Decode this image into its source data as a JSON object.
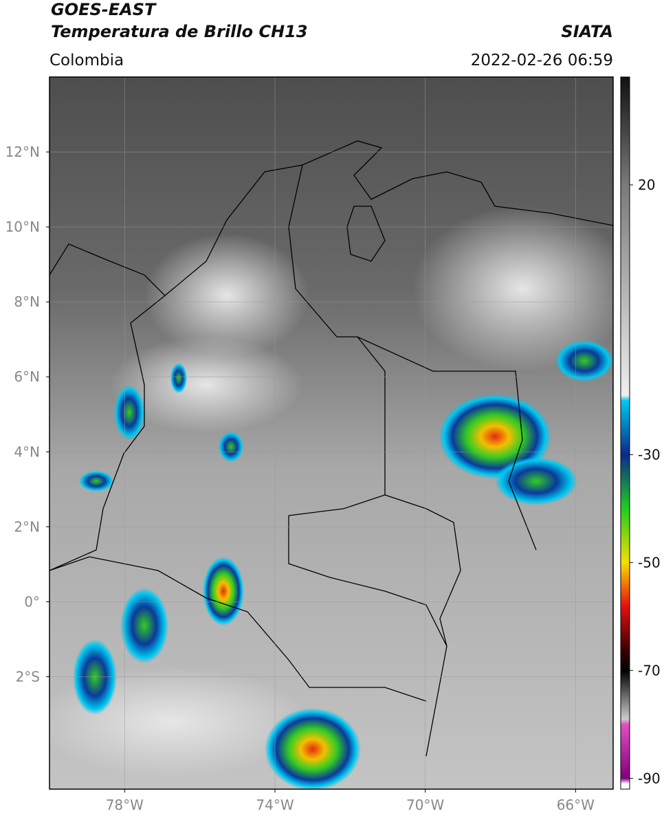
{
  "header": {
    "title": "GOES-EAST",
    "subtitle": "Temperatura de Brillo CH13",
    "source": "SIATA",
    "region": "Colombia",
    "datetime": "2022-02-26 06:59"
  },
  "map": {
    "xlim": [
      -80,
      -65
    ],
    "ylim": [
      -5,
      14
    ],
    "grid": true,
    "xticks": [
      {
        "value": -78,
        "label": "78°W"
      },
      {
        "value": -74,
        "label": "74°W"
      },
      {
        "value": -70,
        "label": "70°W"
      },
      {
        "value": -66,
        "label": "66°W"
      }
    ],
    "yticks": [
      {
        "value": 12,
        "label": "12°N"
      },
      {
        "value": 10,
        "label": "10°N"
      },
      {
        "value": 8,
        "label": "8°N"
      },
      {
        "value": 6,
        "label": "6°N"
      },
      {
        "value": 4,
        "label": "4°N"
      },
      {
        "value": 2,
        "label": "2°N"
      },
      {
        "value": 0,
        "label": "0°"
      },
      {
        "value": -2,
        "label": "2°S"
      }
    ]
  },
  "colorbar": {
    "lim": [
      -92,
      40
    ],
    "ticks": [
      20,
      -30,
      -50,
      -70,
      -90
    ],
    "stops": [
      {
        "value": 40,
        "color": "#111111"
      },
      {
        "value": 20,
        "color": "#7a7a7a"
      },
      {
        "value": -19,
        "color": "#eeeeee"
      },
      {
        "value": -20,
        "color": "#00c8f0"
      },
      {
        "value": -30,
        "color": "#0a2a8a"
      },
      {
        "value": -40,
        "color": "#22cc22"
      },
      {
        "value": -50,
        "color": "#f5e000"
      },
      {
        "value": -58,
        "color": "#e81010"
      },
      {
        "value": -66,
        "color": "#400000"
      },
      {
        "value": -70,
        "color": "#000000"
      },
      {
        "value": -79,
        "color": "#cccccc"
      },
      {
        "value": -80,
        "color": "#e050c0"
      },
      {
        "value": -90,
        "color": "#800080"
      },
      {
        "value": -91,
        "color": "#ffffff"
      }
    ]
  }
}
